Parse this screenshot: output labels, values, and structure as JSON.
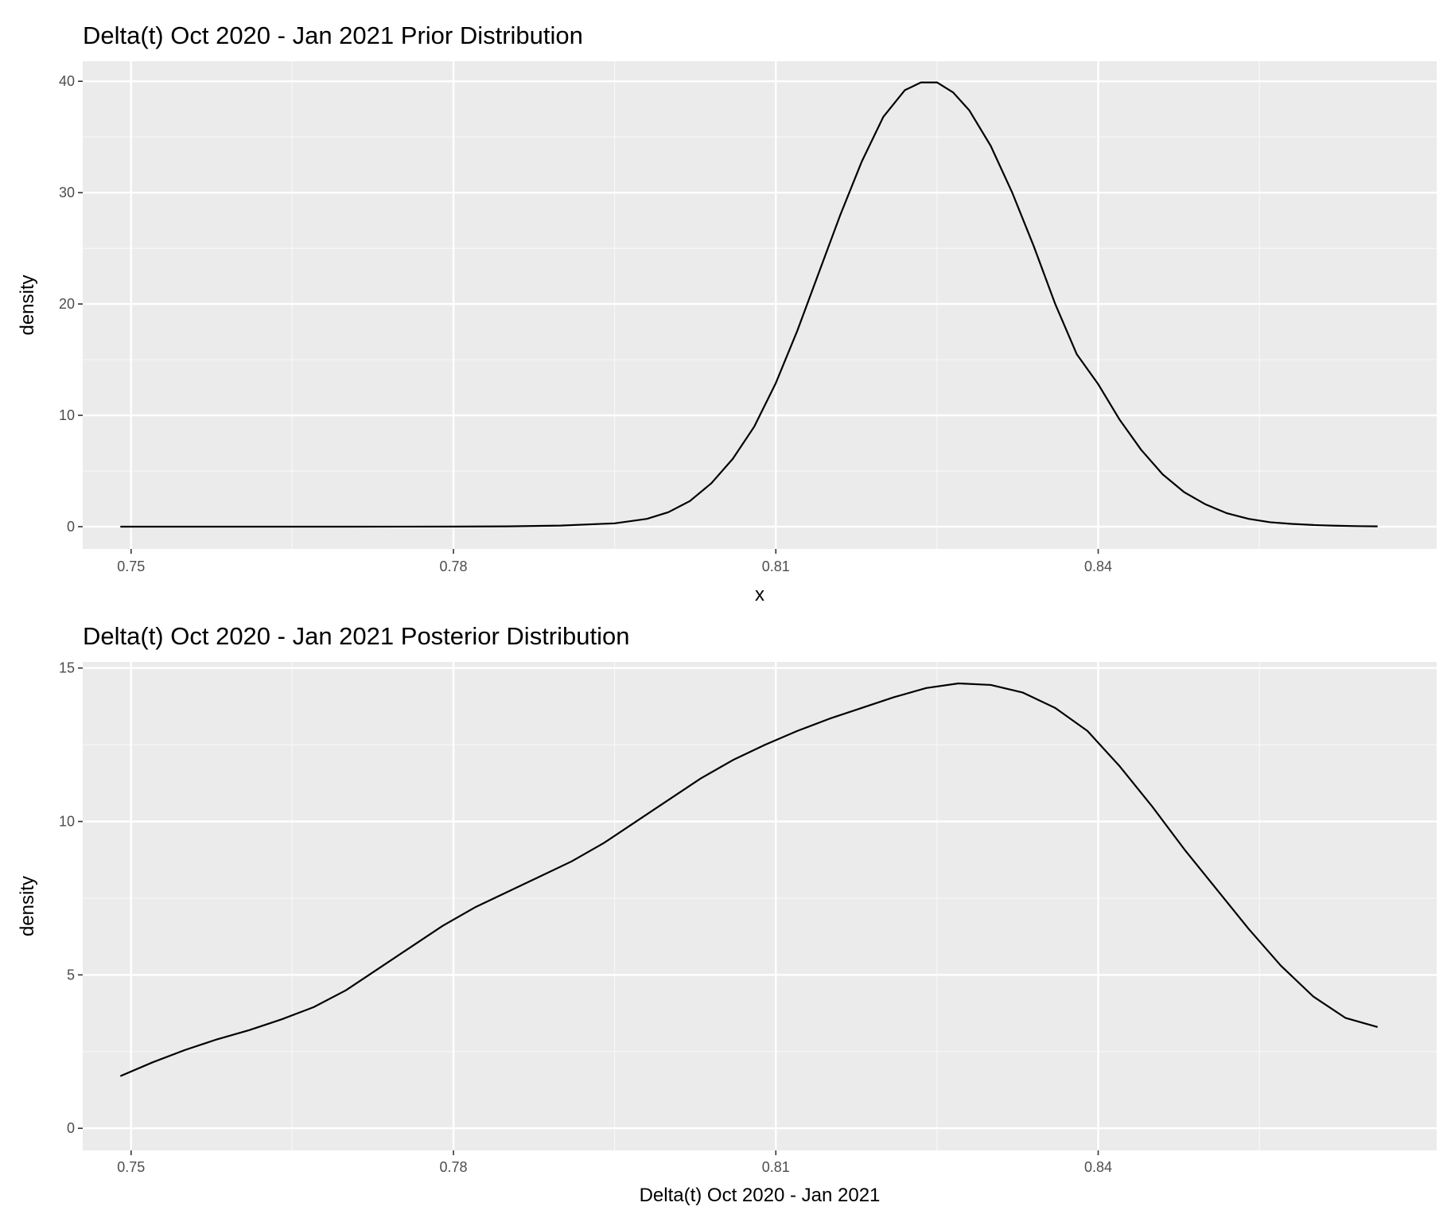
{
  "chart_data": [
    {
      "type": "line",
      "title": "Delta(t) Oct 2020 - Jan 2021 Prior Distribution",
      "xlabel": "x",
      "ylabel": "density",
      "xlim": [
        0.7455,
        0.8715
      ],
      "ylim": [
        -2,
        41.8
      ],
      "x_ticks": [
        0.75,
        0.78,
        0.81,
        0.84
      ],
      "x_tick_labels": [
        "0.75",
        "0.78",
        "0.81",
        "0.84"
      ],
      "y_ticks": [
        0,
        10,
        20,
        30,
        40
      ],
      "y_tick_labels": [
        "0",
        "10",
        "20",
        "30",
        "40"
      ],
      "grid": true,
      "series": [
        {
          "x": [
            0.749,
            0.76,
            0.77,
            0.78,
            0.785,
            0.79,
            0.795,
            0.798,
            0.8,
            0.802,
            0.804,
            0.806,
            0.808,
            0.81,
            0.812,
            0.814,
            0.816,
            0.818,
            0.82,
            0.822,
            0.8235,
            0.825,
            0.8265,
            0.828,
            0.83,
            0.832,
            0.834,
            0.836,
            0.838,
            0.84,
            0.842,
            0.844,
            0.846,
            0.848,
            0.85,
            0.852,
            0.854,
            0.856,
            0.858,
            0.86,
            0.862,
            0.864,
            0.866
          ],
          "y": [
            0,
            0,
            0,
            0.01,
            0.03,
            0.1,
            0.3,
            0.7,
            1.3,
            2.3,
            3.9,
            6.1,
            9.0,
            12.9,
            17.6,
            22.8,
            28.0,
            32.8,
            36.8,
            39.2,
            39.9,
            39.9,
            39.0,
            37.4,
            34.2,
            30.0,
            25.2,
            20.0,
            15.5,
            12.8,
            9.6,
            6.9,
            4.7,
            3.1,
            2.0,
            1.2,
            0.7,
            0.4,
            0.25,
            0.15,
            0.09,
            0.05,
            0.03
          ]
        }
      ]
    },
    {
      "type": "line",
      "title": "Delta(t) Oct 2020 - Jan 2021 Posterior Distribution",
      "xlabel": "Delta(t) Oct 2020 - Jan 2021",
      "ylabel": "density",
      "xlim": [
        0.7455,
        0.8715
      ],
      "ylim": [
        -0.72,
        15.2
      ],
      "x_ticks": [
        0.75,
        0.78,
        0.81,
        0.84
      ],
      "x_tick_labels": [
        "0.75",
        "0.78",
        "0.81",
        "0.84"
      ],
      "y_ticks": [
        0,
        5,
        10,
        15
      ],
      "y_tick_labels": [
        "0",
        "5",
        "10",
        "15"
      ],
      "grid": true,
      "series": [
        {
          "x": [
            0.749,
            0.752,
            0.755,
            0.758,
            0.761,
            0.764,
            0.767,
            0.77,
            0.773,
            0.776,
            0.779,
            0.782,
            0.785,
            0.788,
            0.791,
            0.794,
            0.797,
            0.8,
            0.803,
            0.806,
            0.809,
            0.812,
            0.815,
            0.818,
            0.821,
            0.824,
            0.827,
            0.83,
            0.833,
            0.836,
            0.839,
            0.842,
            0.845,
            0.848,
            0.851,
            0.854,
            0.857,
            0.86,
            0.863,
            0.866
          ],
          "y": [
            1.7,
            2.15,
            2.55,
            2.9,
            3.2,
            3.55,
            3.95,
            4.5,
            5.2,
            5.9,
            6.6,
            7.2,
            7.7,
            8.2,
            8.7,
            9.3,
            10.0,
            10.7,
            11.4,
            12.0,
            12.5,
            12.95,
            13.35,
            13.7,
            14.05,
            14.35,
            14.5,
            14.45,
            14.2,
            13.7,
            12.95,
            11.8,
            10.5,
            9.1,
            7.8,
            6.5,
            5.3,
            4.3,
            3.6,
            3.3
          ]
        }
      ]
    }
  ]
}
